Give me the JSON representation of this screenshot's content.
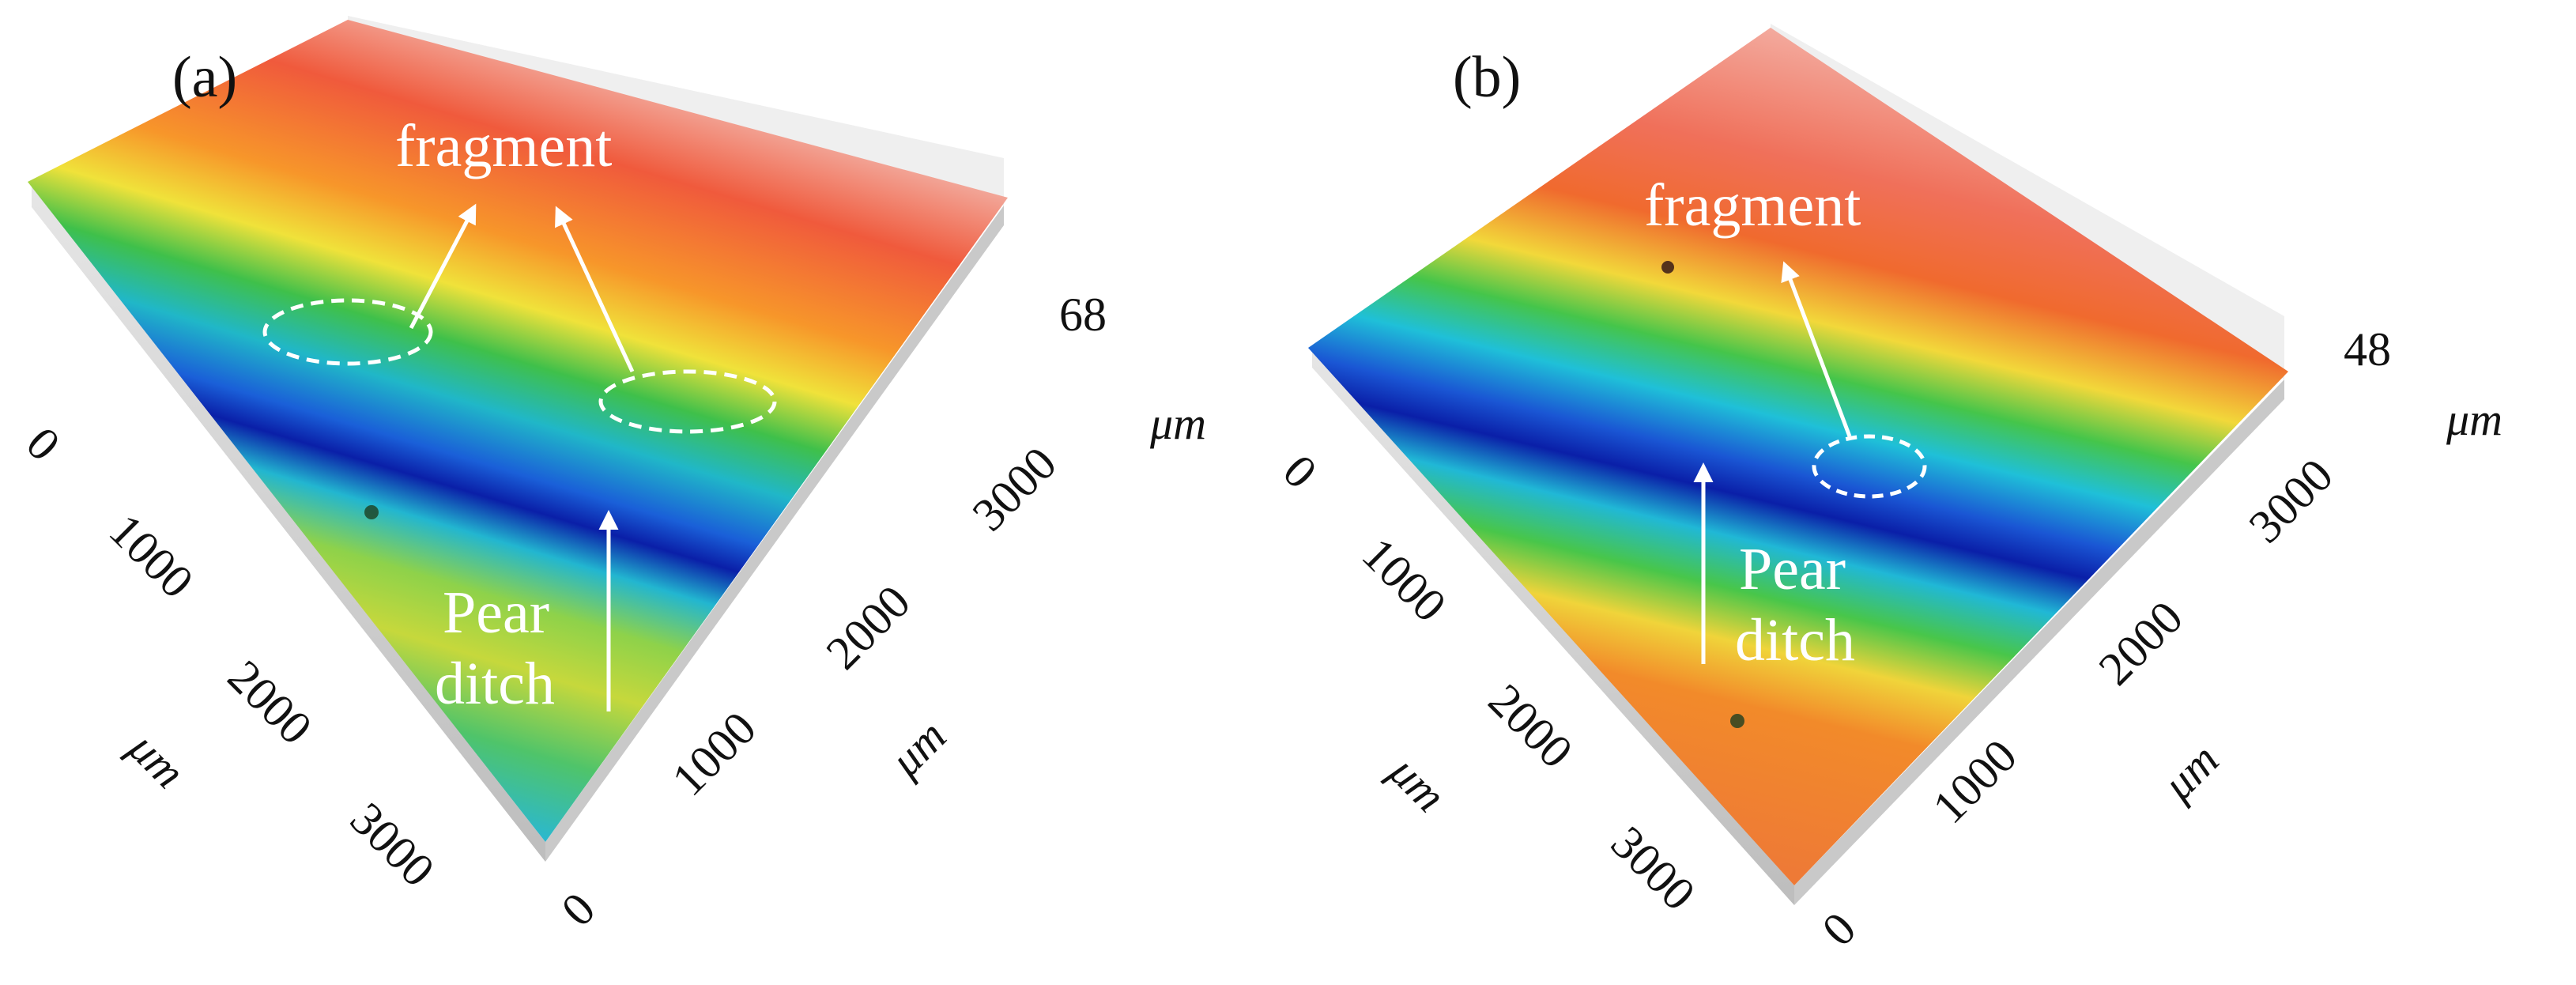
{
  "panels": [
    {
      "id": "a",
      "label": "(a)",
      "z_max": "68",
      "z_unit": "μm",
      "left_axis": {
        "ticks": [
          "0",
          "1000",
          "2000",
          "3000"
        ],
        "unit": "μm"
      },
      "right_axis": {
        "ticks": [
          "0",
          "1000",
          "2000",
          "3000"
        ],
        "unit": "μm"
      },
      "annotations": {
        "fragment": "fragment",
        "pear_line1": "Pear",
        "pear_line2": "ditch"
      }
    },
    {
      "id": "b",
      "label": "(b)",
      "z_max": "48",
      "z_unit": "μm",
      "left_axis": {
        "ticks": [
          "0",
          "1000",
          "2000",
          "3000"
        ],
        "unit": "μm"
      },
      "right_axis": {
        "ticks": [
          "0",
          "1000",
          "2000",
          "3000"
        ],
        "unit": "μm"
      },
      "annotations": {
        "fragment": "fragment",
        "pear_line1": "Pear",
        "pear_line2": "ditch"
      }
    }
  ],
  "colors": {
    "high": "#f05a3c",
    "mid_high": "#f0e23a",
    "mid": "#35c24a",
    "low": "#00b2e6",
    "lowest": "#0a1fa8",
    "annotation": "#ffffff",
    "base": "#cfcfcf"
  }
}
